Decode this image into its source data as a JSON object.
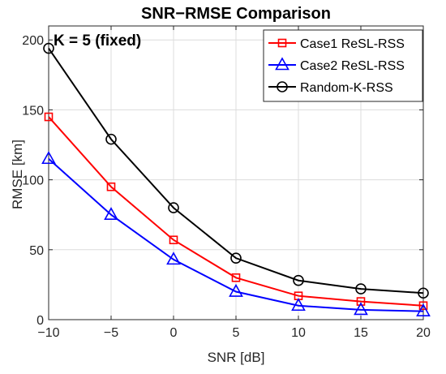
{
  "chart_data": {
    "type": "line",
    "title": "SNR−RMSE Comparison",
    "annotation": "K = 5 (fixed)",
    "xlabel": "SNR [dB]",
    "ylabel": "RMSE [km]",
    "xlim": [
      -10,
      20
    ],
    "ylim": [
      0,
      210
    ],
    "xticks": [
      -10,
      -5,
      0,
      5,
      10,
      15,
      20
    ],
    "xtick_labels": [
      "−10",
      "−5",
      "0",
      "5",
      "10",
      "15",
      "20"
    ],
    "yticks": [
      0,
      50,
      100,
      150,
      200
    ],
    "ytick_labels": [
      "0",
      "50",
      "100",
      "150",
      "200"
    ],
    "grid": true,
    "legend_position": "top-right",
    "x": [
      -10,
      -5,
      0,
      5,
      10,
      15,
      20
    ],
    "series": [
      {
        "name": "Case1 ReSL-RSS",
        "color": "#ff0000",
        "marker": "square",
        "values": [
          145,
          95,
          57,
          30,
          17,
          13,
          10
        ]
      },
      {
        "name": "Case2 ReSL-RSS",
        "color": "#0000ff",
        "marker": "triangle",
        "values": [
          115,
          75,
          43,
          20,
          10,
          7,
          6
        ]
      },
      {
        "name": "Random-K-RSS",
        "color": "#000000",
        "marker": "circle",
        "values": [
          194,
          129,
          80,
          44,
          28,
          22,
          19
        ]
      }
    ]
  }
}
